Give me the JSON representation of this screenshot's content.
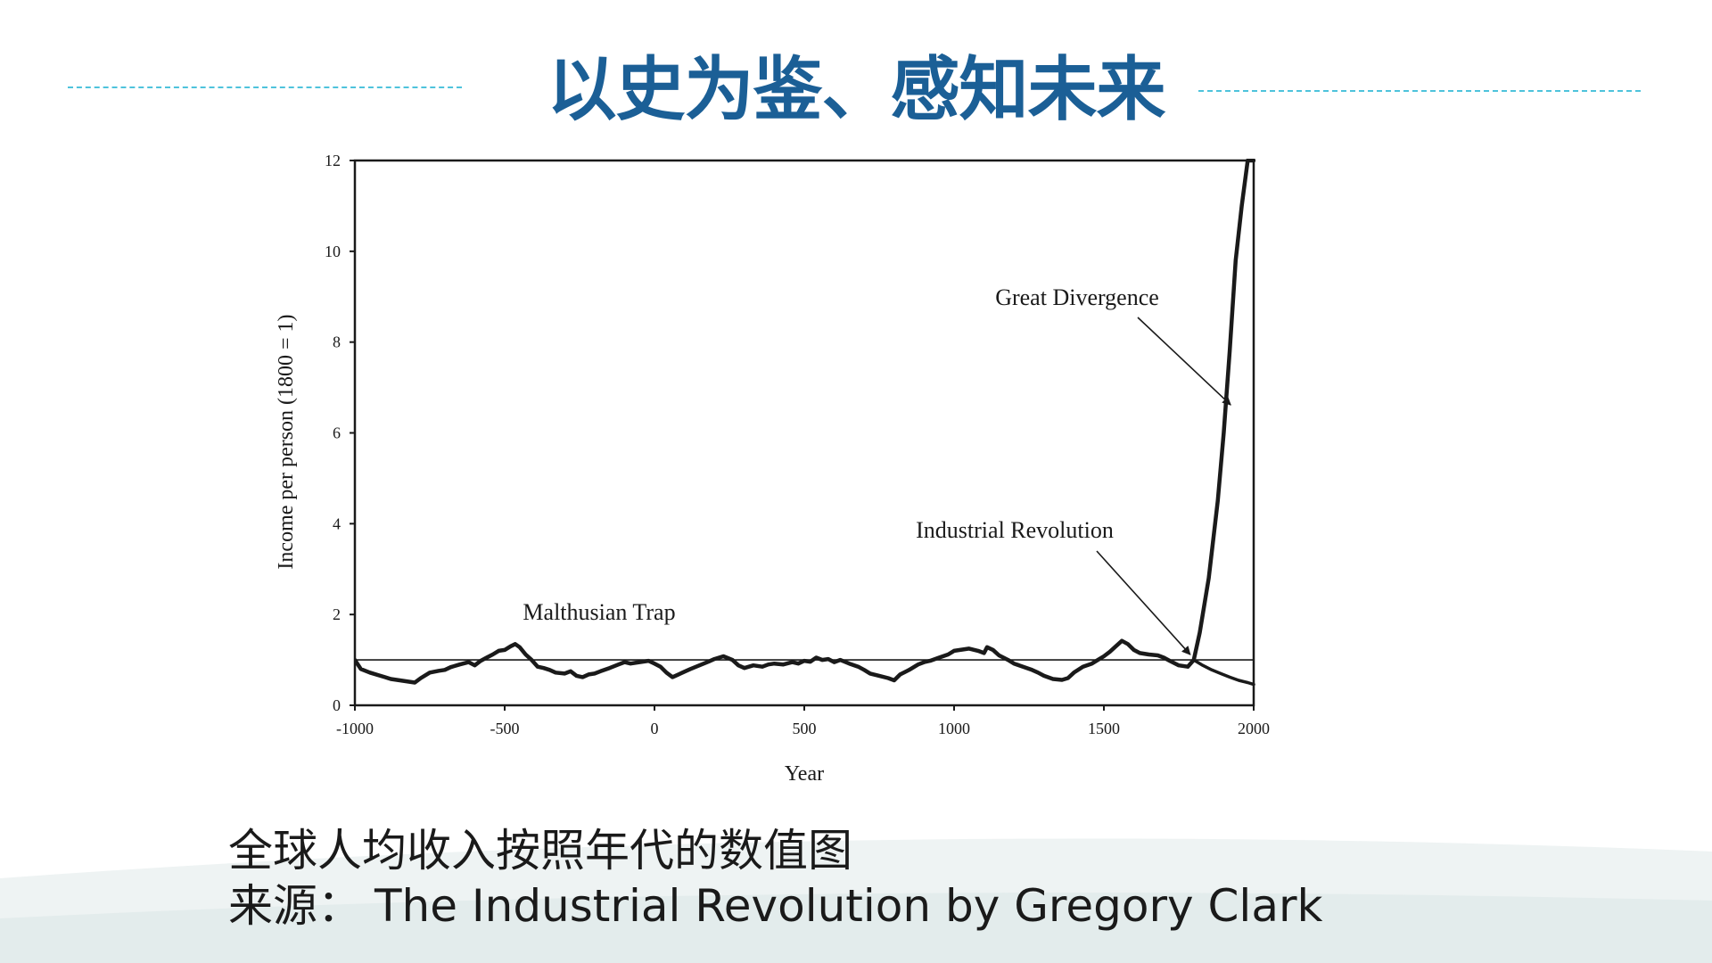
{
  "slide": {
    "title": "以史为鉴、感知未来",
    "caption_line1": "全球人均收入按照年代的数值图",
    "caption_source_label": "来源：",
    "caption_source_text": "The Industrial Revolution by Gregory Clark",
    "title_color": "#1b5f96",
    "rule_color": "#4ec3dc"
  },
  "chart_data": {
    "type": "line",
    "title": "",
    "xlabel": "Year",
    "ylabel": "Income per person (1800 = 1)",
    "xlim": [
      -1000,
      2000
    ],
    "ylim": [
      0,
      12
    ],
    "x_ticks": [
      "-1000",
      "-500",
      "0",
      "500",
      "1000",
      "1500",
      "2000"
    ],
    "y_ticks": [
      "0",
      "2",
      "4",
      "6",
      "8",
      "10",
      "12"
    ],
    "reference_line": {
      "y": 1
    },
    "annotations": [
      {
        "text": "Malthusian Trap"
      },
      {
        "text": "Industrial Revolution",
        "points_to": {
          "x": 1800,
          "y": 1
        }
      },
      {
        "text": "Great Divergence",
        "points_to": {
          "x": 1935,
          "y": 6.5
        }
      }
    ],
    "series": [
      {
        "x": [
          -1000,
          -980,
          -950,
          -920,
          -900,
          -880,
          -850,
          -820,
          -800,
          -780,
          -750,
          -720,
          -700,
          -680,
          -650,
          -620,
          -600,
          -580,
          -560,
          -540,
          -520,
          -500,
          -480,
          -465,
          -450,
          -430,
          -410,
          -390,
          -370,
          -350,
          -330,
          -300,
          -280,
          -260,
          -240,
          -220,
          -200,
          -180,
          -150,
          -120,
          -100,
          -80,
          -50,
          -20,
          0,
          20,
          40,
          60,
          80,
          100,
          120,
          150,
          180,
          200,
          230,
          260,
          280,
          300,
          330,
          360,
          380,
          400,
          430,
          460,
          480,
          500,
          520,
          540,
          560,
          580,
          600,
          620,
          650,
          680,
          700,
          720,
          750,
          780,
          800,
          820,
          850,
          880,
          900,
          920,
          950,
          980,
          1000,
          1020,
          1050,
          1080,
          1100,
          1110,
          1130,
          1150,
          1180,
          1200,
          1230,
          1260,
          1280,
          1300,
          1330,
          1360,
          1380,
          1400,
          1430,
          1460,
          1480,
          1500,
          1520,
          1540,
          1560,
          1580,
          1600,
          1620,
          1650,
          1680,
          1700,
          1720,
          1750,
          1780,
          1800,
          1820,
          1850,
          1880,
          1900,
          1920,
          1940,
          1960,
          1980,
          2000
        ],
        "values": [
          1.0,
          0.8,
          0.72,
          0.66,
          0.62,
          0.58,
          0.55,
          0.52,
          0.5,
          0.6,
          0.72,
          0.76,
          0.78,
          0.84,
          0.9,
          0.95,
          0.88,
          0.98,
          1.05,
          1.12,
          1.2,
          1.22,
          1.3,
          1.35,
          1.28,
          1.12,
          1.0,
          0.85,
          0.82,
          0.78,
          0.72,
          0.7,
          0.75,
          0.65,
          0.62,
          0.68,
          0.7,
          0.75,
          0.82,
          0.9,
          0.95,
          0.92,
          0.95,
          0.98,
          0.92,
          0.85,
          0.72,
          0.62,
          0.68,
          0.74,
          0.8,
          0.88,
          0.96,
          1.02,
          1.08,
          1.0,
          0.88,
          0.82,
          0.88,
          0.85,
          0.9,
          0.92,
          0.9,
          0.95,
          0.92,
          0.98,
          0.96,
          1.05,
          1.0,
          1.02,
          0.95,
          1.0,
          0.92,
          0.85,
          0.78,
          0.7,
          0.65,
          0.6,
          0.55,
          0.68,
          0.78,
          0.9,
          0.95,
          0.98,
          1.05,
          1.12,
          1.2,
          1.22,
          1.25,
          1.2,
          1.15,
          1.28,
          1.22,
          1.1,
          1.0,
          0.92,
          0.85,
          0.78,
          0.72,
          0.65,
          0.58,
          0.56,
          0.6,
          0.72,
          0.85,
          0.92,
          1.0,
          1.08,
          1.18,
          1.3,
          1.42,
          1.35,
          1.22,
          1.15,
          1.12,
          1.1,
          1.05,
          0.98,
          0.88,
          0.85,
          1.0,
          1.6,
          2.8,
          4.5,
          6.0,
          7.8,
          9.8,
          11.0,
          12.0,
          12.0
        ]
      },
      {
        "x": [
          1800,
          1830,
          1860,
          1890,
          1920,
          1950,
          1980,
          2000
        ],
        "values": [
          1.0,
          0.88,
          0.78,
          0.7,
          0.62,
          0.55,
          0.5,
          0.46
        ]
      }
    ]
  }
}
